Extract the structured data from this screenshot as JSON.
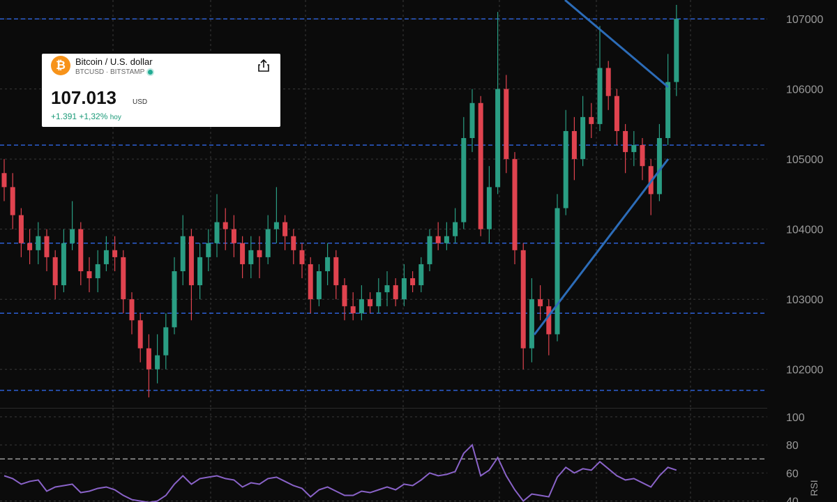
{
  "card": {
    "icon": "₿",
    "name": "Bitcoin / U.S. dollar",
    "symbol": "BTCUSD",
    "exchange": "BITSTAMP",
    "price": "107.013",
    "currency": "USD",
    "change": "+1.391 +1,32%",
    "period": "hoy"
  },
  "chart_data": [
    {
      "type": "candlestick",
      "up_color": "#2a9d83",
      "down_color": "#e0434f",
      "level_color": "#2d5fd4",
      "grid": true,
      "ylim": [
        101450,
        107270
      ],
      "yticks": [
        102000,
        103000,
        104000,
        105000,
        106000,
        107000
      ],
      "levels": [
        107000,
        105200,
        103800,
        102800,
        101700
      ],
      "open": [
        104800,
        104600,
        104200,
        103800,
        103700,
        103900,
        103600,
        103200,
        103800,
        104000,
        103400,
        103300,
        103500,
        103700,
        103600,
        103000,
        102700,
        102300,
        102000,
        102200,
        102600,
        103400,
        103900,
        103200,
        103600,
        103800,
        104100,
        104000,
        103800,
        103500,
        103700,
        103600,
        104000,
        104100,
        103900,
        103700,
        103500,
        103000,
        103400,
        103600,
        103200,
        102900,
        102800,
        103000,
        102900,
        103100,
        103200,
        103000,
        103300,
        103200,
        103500,
        103900,
        103800,
        103900,
        104100,
        105300,
        105800,
        104000,
        104600,
        106000,
        105000,
        103700,
        102300,
        103000,
        102900,
        102500,
        104300,
        105400,
        105000,
        105600,
        105500,
        106300,
        105900,
        105400,
        105100,
        105200,
        104900,
        104500,
        105300,
        106100
      ],
      "high": [
        105000,
        104800,
        104300,
        104000,
        104100,
        104000,
        103700,
        104000,
        104400,
        104100,
        103600,
        103700,
        103900,
        103900,
        103700,
        103100,
        102800,
        102500,
        102500,
        102800,
        103600,
        104200,
        104000,
        103800,
        104000,
        104500,
        104300,
        104200,
        103900,
        103900,
        103900,
        104200,
        104600,
        104200,
        104000,
        103800,
        103600,
        103500,
        103800,
        103700,
        103300,
        103100,
        103200,
        103100,
        103300,
        103400,
        103300,
        103500,
        103400,
        103600,
        104000,
        104100,
        104100,
        104300,
        105600,
        106000,
        105900,
        104900,
        107100,
        106200,
        105100,
        103800,
        103300,
        103200,
        103000,
        104500,
        105700,
        105600,
        105900,
        105800,
        106900,
        106400,
        106000,
        105500,
        105400,
        105300,
        105000,
        105500,
        106500,
        107200
      ],
      "low": [
        104400,
        104000,
        103600,
        103500,
        103500,
        103400,
        103000,
        103100,
        103700,
        103200,
        103100,
        103100,
        103400,
        103400,
        102800,
        102500,
        102100,
        101600,
        101800,
        102000,
        102500,
        103200,
        102700,
        103000,
        103400,
        103600,
        103700,
        103600,
        103300,
        103300,
        103300,
        103500,
        103800,
        103700,
        103500,
        103300,
        102800,
        102900,
        103200,
        103000,
        102700,
        102700,
        102700,
        102800,
        102800,
        102900,
        102900,
        102900,
        103100,
        103100,
        103400,
        103700,
        103700,
        103800,
        104000,
        105100,
        103900,
        103800,
        104500,
        104800,
        103500,
        102000,
        102100,
        102700,
        102200,
        102400,
        104200,
        104700,
        104900,
        105300,
        105400,
        105700,
        105200,
        104800,
        104900,
        104700,
        104200,
        104400,
        105200,
        105900
      ],
      "close": [
        104600,
        104200,
        103800,
        103700,
        103900,
        103600,
        103200,
        103800,
        104000,
        103400,
        103300,
        103500,
        103700,
        103600,
        103000,
        102700,
        102300,
        102000,
        102200,
        102600,
        103400,
        103900,
        103200,
        103600,
        103800,
        104100,
        104000,
        103800,
        103500,
        103700,
        103600,
        104000,
        104100,
        103900,
        103700,
        103500,
        103000,
        103400,
        103600,
        103200,
        102900,
        102800,
        103000,
        102900,
        103100,
        103200,
        103000,
        103300,
        103200,
        103500,
        103900,
        103800,
        103900,
        104100,
        105300,
        105800,
        104000,
        104600,
        106000,
        105000,
        103700,
        102300,
        103000,
        102900,
        102500,
        104300,
        105400,
        105000,
        105600,
        105500,
        106300,
        105900,
        105400,
        105100,
        105200,
        104900,
        104500,
        105300,
        106100,
        107000
      ]
    },
    {
      "type": "line",
      "title": "RSI",
      "color": "#8a63c9",
      "ref_color": "#9a9a9a",
      "reference": 70,
      "grid": true,
      "ylim": [
        39.3,
        105.9
      ],
      "yticks": [
        40,
        60,
        80,
        100
      ],
      "values": [
        58,
        56,
        52,
        54,
        55,
        47,
        50,
        51,
        52,
        46,
        47,
        49,
        50,
        48,
        44,
        41,
        40,
        39,
        40,
        44,
        52,
        58,
        52,
        56,
        57,
        58,
        56,
        55,
        50,
        53,
        52,
        56,
        57,
        54,
        51,
        49,
        43,
        48,
        50,
        47,
        44,
        44,
        47,
        46,
        48,
        50,
        48,
        52,
        51,
        55,
        60,
        58,
        59,
        61,
        74,
        80,
        58,
        62,
        71,
        58,
        48,
        40,
        45,
        44,
        43,
        57,
        64,
        60,
        63,
        62,
        68,
        63,
        58,
        55,
        56,
        53,
        50,
        58,
        64,
        62
      ]
    }
  ]
}
